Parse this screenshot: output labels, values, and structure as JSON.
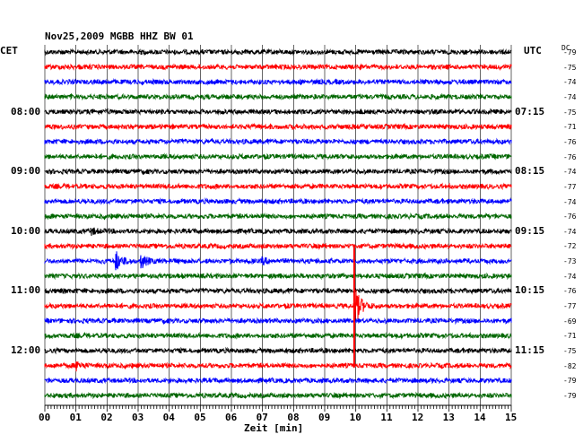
{
  "chart_data": {
    "type": "line",
    "title": "Nov25,2009   MGBB HHZ BW 01",
    "left_timezone": "CET",
    "right_timezone": "UTC",
    "dc_label": "DC",
    "xlabel": "Zeit [min]",
    "xlim": [
      0,
      15
    ],
    "x_tick_labels": [
      "00",
      "01",
      "02",
      "03",
      "04",
      "05",
      "06",
      "07",
      "08",
      "09",
      "10",
      "11",
      "12",
      "13",
      "14",
      "15"
    ],
    "grid": true,
    "trace_colors": [
      "#000000",
      "#ff0000",
      "#0000ff",
      "#006600"
    ],
    "rows": [
      {
        "left": "",
        "right": "",
        "dc": "-79",
        "color": "#000000"
      },
      {
        "left": "",
        "right": "",
        "dc": "-75",
        "color": "#ff0000"
      },
      {
        "left": "",
        "right": "",
        "dc": "-74",
        "color": "#0000ff"
      },
      {
        "left": "",
        "right": "",
        "dc": "-74",
        "color": "#006600"
      },
      {
        "left": "08:00",
        "right": "07:15",
        "dc": "-75",
        "color": "#000000"
      },
      {
        "left": "",
        "right": "",
        "dc": "-71",
        "color": "#ff0000"
      },
      {
        "left": "",
        "right": "",
        "dc": "-76",
        "color": "#0000ff"
      },
      {
        "left": "",
        "right": "",
        "dc": "-76",
        "color": "#006600"
      },
      {
        "left": "09:00",
        "right": "08:15",
        "dc": "-74",
        "color": "#000000"
      },
      {
        "left": "",
        "right": "",
        "dc": "-77",
        "color": "#ff0000"
      },
      {
        "left": "",
        "right": "",
        "dc": "-74",
        "color": "#0000ff"
      },
      {
        "left": "",
        "right": "",
        "dc": "-76",
        "color": "#006600"
      },
      {
        "left": "10:00",
        "right": "09:15",
        "dc": "-74",
        "color": "#000000"
      },
      {
        "left": "",
        "right": "",
        "dc": "-72",
        "color": "#ff0000"
      },
      {
        "left": "",
        "right": "",
        "dc": "-73",
        "color": "#0000ff"
      },
      {
        "left": "",
        "right": "",
        "dc": "-74",
        "color": "#006600"
      },
      {
        "left": "11:00",
        "right": "10:15",
        "dc": "-76",
        "color": "#000000"
      },
      {
        "left": "",
        "right": "",
        "dc": "-77",
        "color": "#ff0000"
      },
      {
        "left": "",
        "right": "",
        "dc": "-69",
        "color": "#0000ff"
      },
      {
        "left": "",
        "right": "",
        "dc": "-71",
        "color": "#006600"
      },
      {
        "left": "12:00",
        "right": "11:15",
        "dc": "-75",
        "color": "#000000"
      },
      {
        "left": "",
        "right": "",
        "dc": "-82",
        "color": "#ff0000"
      },
      {
        "left": "",
        "right": "",
        "dc": "-79",
        "color": "#0000ff"
      },
      {
        "left": "",
        "right": "",
        "dc": "-79",
        "color": "#006600"
      }
    ],
    "events": [
      {
        "row": 14,
        "minute": 2.3,
        "amplitude": 1.6
      },
      {
        "row": 14,
        "minute": 3.1,
        "amplitude": 1.3
      },
      {
        "row": 14,
        "minute": 7.0,
        "amplitude": 0.5
      },
      {
        "row": 12,
        "minute": 1.5,
        "amplitude": 0.5
      },
      {
        "row": 17,
        "minute": 10.0,
        "amplitude": 3.0
      },
      {
        "row": 21,
        "minute": 1.0,
        "amplitude": 0.8
      }
    ],
    "vertical_spike": {
      "minute": 9.95,
      "from_row": 13,
      "to_row": 21,
      "color": "#ff0000"
    }
  }
}
